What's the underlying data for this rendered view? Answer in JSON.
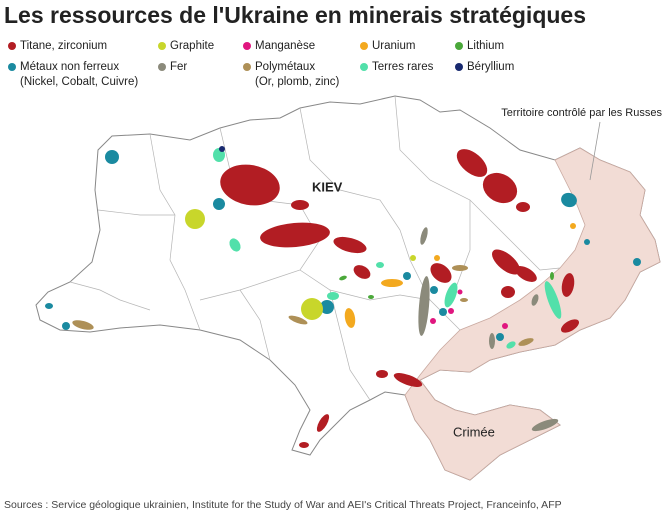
{
  "title": "Les ressources de l'Ukraine en minerais stratégiques",
  "legend": [
    {
      "label": "Titane, zirconium",
      "color": "#b21d23"
    },
    {
      "label": "Graphite",
      "color": "#c8d62b"
    },
    {
      "label": "Manganèse",
      "color": "#e0167f"
    },
    {
      "label": "Uranium",
      "color": "#f3a91f"
    },
    {
      "label": "Lithium",
      "color": "#4aa83a"
    },
    {
      "label": "Métaux non ferreux",
      "sublabel": "(Nickel, Cobalt, Cuivre)",
      "color": "#1a8aa0"
    },
    {
      "label": "Fer",
      "color": "#8b8a7b"
    },
    {
      "label": "Polymétaux",
      "sublabel": "(Or, plomb, zinc)",
      "color": "#ae9057"
    },
    {
      "label": "Terres rares",
      "color": "#52e0aa"
    },
    {
      "label": "Béryllium",
      "color": "#18296f"
    }
  ],
  "labels": {
    "capital": "KIEV",
    "crimea": "Crimée",
    "occupied": "Territoire contrôlé par les Russes"
  },
  "source": "Sources : Service géologique ukrainien, Institute for the Study of War and AEI's Critical Threats Project, Franceinfo, AFP"
}
